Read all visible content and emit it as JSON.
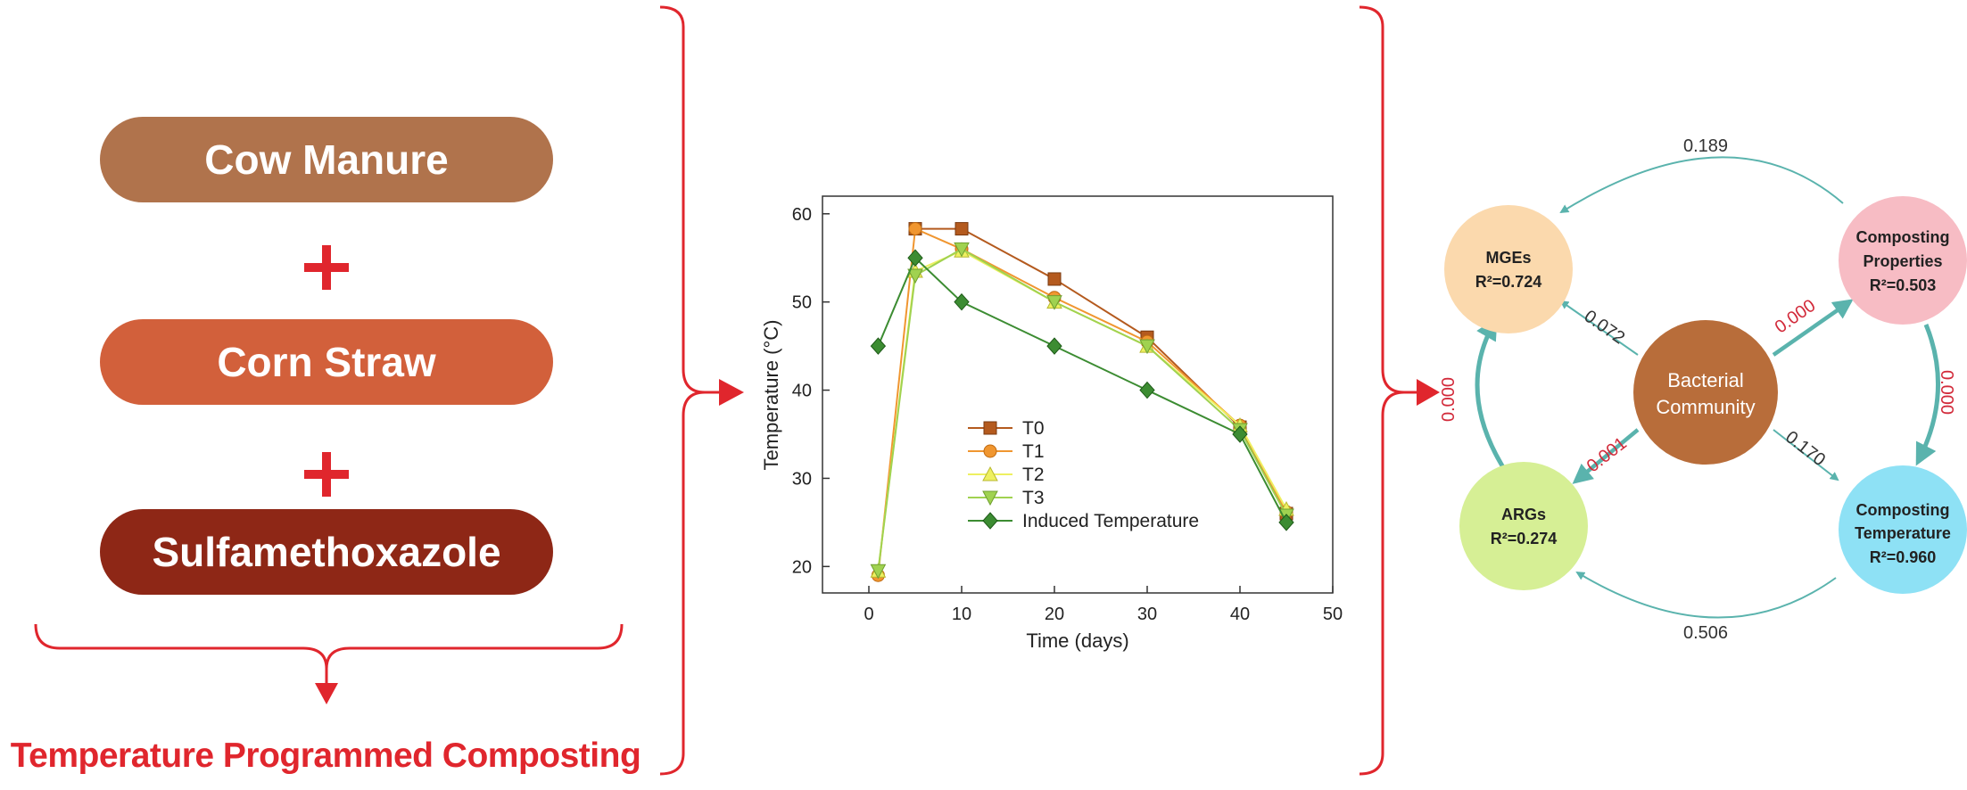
{
  "colors": {
    "red": "#e0262d",
    "cow": "#b0734c",
    "corn": "#d2603b",
    "sulfa": "#8e2716",
    "teal": "#5ab3ad",
    "t0": "#b45a1e",
    "t1": "#f09630",
    "t2": "#eef060",
    "t3": "#a0d250",
    "induced": "#3c8c32"
  },
  "ingredients": {
    "cow_manure": "Cow Manure",
    "corn_straw": "Corn Straw",
    "sulfamethoxazole": "Sulfamethoxazole",
    "plus_icon": "plus-icon"
  },
  "process_title": "Temperature Programmed Composting",
  "chart_data": {
    "type": "line",
    "title": "",
    "xlabel": "Time (days)",
    "ylabel": "Temperature (°C)",
    "xlim": [
      -5,
      50
    ],
    "ylim": [
      17,
      62
    ],
    "xticks": [
      0,
      10,
      20,
      30,
      40,
      50
    ],
    "yticks": [
      20,
      30,
      40,
      50,
      60
    ],
    "legend_position": "center",
    "series": [
      {
        "name": "T0",
        "marker": "square",
        "x": [
          5,
          10,
          20,
          30,
          40,
          45
        ],
        "values": [
          58.3,
          58.3,
          52.6,
          46.0,
          35.8,
          26.0
        ]
      },
      {
        "name": "T1",
        "marker": "circle",
        "x": [
          1,
          5,
          10,
          20,
          30,
          40,
          45
        ],
        "values": [
          19.0,
          58.3,
          56.0,
          50.5,
          45.5,
          36.0,
          26.2
        ]
      },
      {
        "name": "T2",
        "marker": "triangle-up",
        "x": [
          1,
          5,
          10,
          20,
          30,
          40,
          45
        ],
        "values": [
          19.5,
          53.5,
          55.8,
          50.0,
          45.0,
          36.0,
          26.5
        ]
      },
      {
        "name": "T3",
        "marker": "triangle-down",
        "x": [
          1,
          5,
          10,
          20,
          30,
          40,
          45
        ],
        "values": [
          19.5,
          53.0,
          56.0,
          50.0,
          45.0,
          35.5,
          25.8
        ]
      },
      {
        "name": "Induced Temperature",
        "marker": "diamond",
        "x": [
          1,
          5,
          10,
          20,
          30,
          40,
          45
        ],
        "values": [
          45,
          55,
          50,
          45,
          40,
          35,
          25
        ]
      }
    ]
  },
  "network": {
    "center": [
      "Bacterial",
      "Community"
    ],
    "mges": {
      "name": "MGEs",
      "r2": "R²=0.724"
    },
    "properties": {
      "name": [
        "Composting",
        "Properties"
      ],
      "r2": "R²=0.503"
    },
    "args": {
      "name": "ARGs",
      "r2": "R²=0.274"
    },
    "temperature": {
      "name": [
        "Composting",
        "Temperature"
      ],
      "r2": "R²=0.960"
    },
    "labels": {
      "top": "0.189",
      "bottom": "0.506",
      "center_mges": "0.072",
      "center_properties": "0.000",
      "center_args": "0.001",
      "center_temperature": "0.170",
      "args_mges": "0.000",
      "properties_temperature": "0.000"
    }
  }
}
